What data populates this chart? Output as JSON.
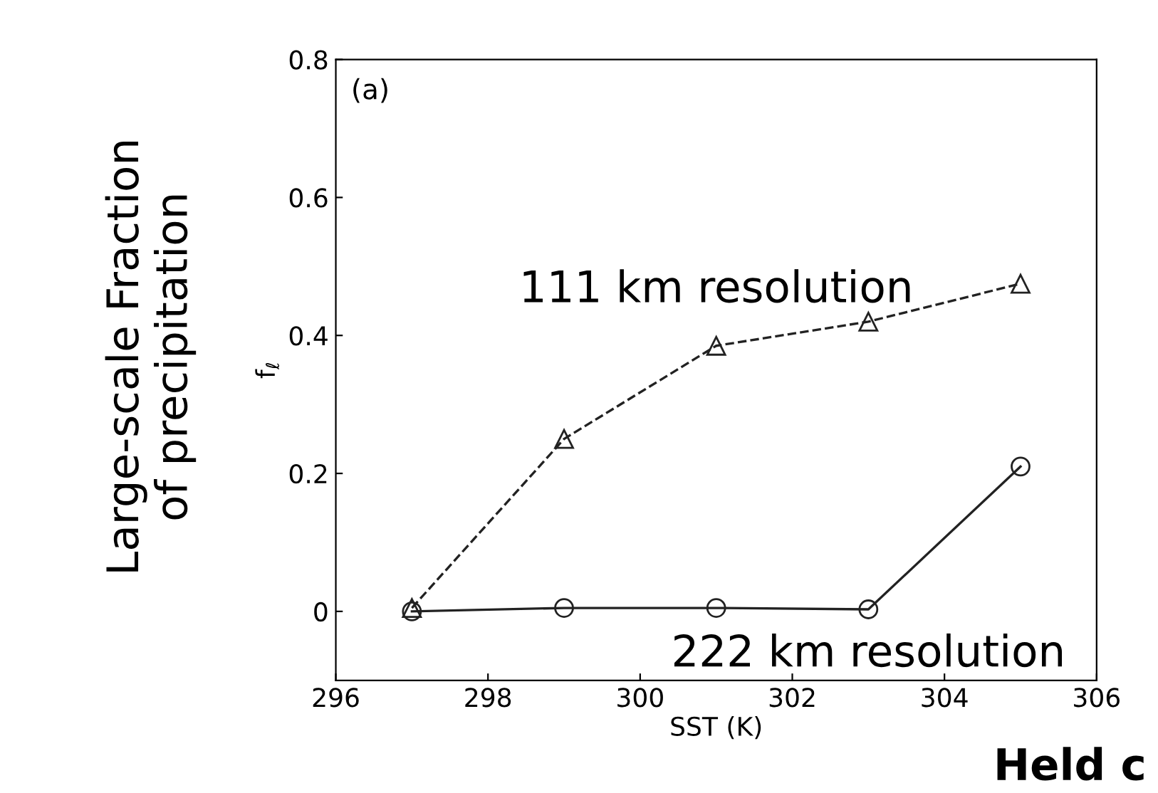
{
  "chart_data": {
    "type": "line",
    "ylabel": "f$_{ℓ}$",
    "xlabel": "SST (K)",
    "x": [
      297,
      299,
      301,
      303,
      305
    ],
    "series": [
      {
        "color": "#222222",
        "values": [
          0.005,
          0.25,
          0.385,
          0.42,
          0.475
        ],
        "marker": "triangle",
        "line_style": "dashed"
      },
      {
        "color": "#222222",
        "values": [
          0,
          0.005,
          0.005,
          0.003,
          0.21
        ],
        "marker": "circle",
        "line_style": "solid"
      }
    ],
    "xlim": [
      296,
      306
    ],
    "ylim": [
      -0.1,
      0.8
    ],
    "xticks": [
      296,
      298,
      300,
      302,
      304,
      306
    ],
    "yticks": [
      0,
      0.2,
      0.4,
      0.6,
      0.8
    ],
    "grid": false,
    "legend": false,
    "annotations": [
      "(a)",
      "Large-scale Fraction\nof precipitation",
      "Held c",
      {
        "text": "111 km resolution",
        "x": 301,
        "y": 0.385
      },
      {
        "text": "222 km resolution",
        "x": 303,
        "y": 0.003
      }
    ]
  }
}
